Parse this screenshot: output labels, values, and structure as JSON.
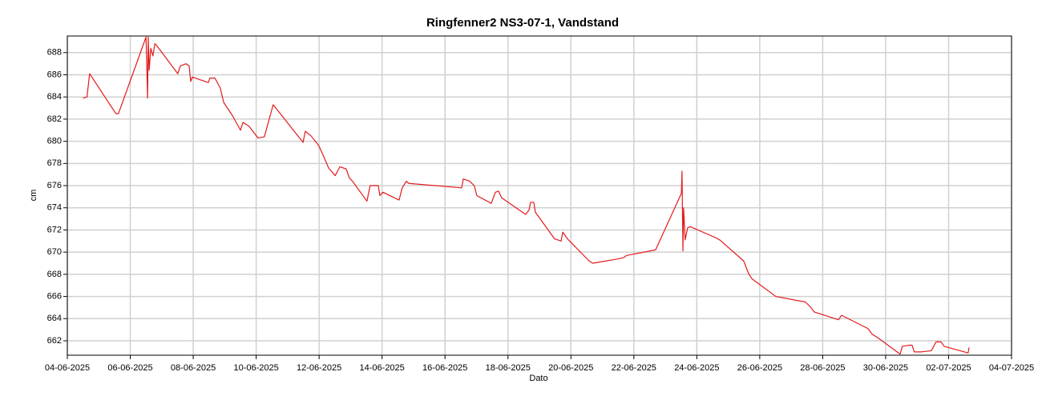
{
  "chart_data": {
    "type": "line",
    "title": "Ringfenner2 NS3-07-1, Vandstand",
    "x_label": "Dato",
    "y_label": "cm",
    "color": "#e31a1c",
    "grid": true,
    "xlim": [
      "2025-06-04T00:00",
      "2025-07-04T00:00"
    ],
    "ylim": [
      660.7,
      689.5
    ],
    "yticks": [
      662,
      664,
      666,
      668,
      670,
      672,
      674,
      676,
      678,
      680,
      682,
      684,
      686,
      688
    ],
    "xticks": [
      {
        "value": "2025-06-04T00:00",
        "label": "04-06-2025"
      },
      {
        "value": "2025-06-06T00:00",
        "label": "06-06-2025"
      },
      {
        "value": "2025-06-08T00:00",
        "label": "08-06-2025"
      },
      {
        "value": "2025-06-10T00:00",
        "label": "10-06-2025"
      },
      {
        "value": "2025-06-12T00:00",
        "label": "12-06-2025"
      },
      {
        "value": "2025-06-14T00:00",
        "label": "14-06-2025"
      },
      {
        "value": "2025-06-16T00:00",
        "label": "16-06-2025"
      },
      {
        "value": "2025-06-18T00:00",
        "label": "18-06-2025"
      },
      {
        "value": "2025-06-20T00:00",
        "label": "20-06-2025"
      },
      {
        "value": "2025-06-22T00:00",
        "label": "22-06-2025"
      },
      {
        "value": "2025-06-24T00:00",
        "label": "24-06-2025"
      },
      {
        "value": "2025-06-26T00:00",
        "label": "26-06-2025"
      },
      {
        "value": "2025-06-28T00:00",
        "label": "28-06-2025"
      },
      {
        "value": "2025-06-30T00:00",
        "label": "30-06-2025"
      },
      {
        "value": "2025-07-02T00:00",
        "label": "02-07-2025"
      },
      {
        "value": "2025-07-04T00:00",
        "label": "04-07-2025"
      }
    ],
    "x": [
      "2025-06-04T12:00",
      "2025-06-04T15:00",
      "2025-06-04T17:00",
      "2025-06-05T13:00",
      "2025-06-05T15:00",
      "2025-06-06T12:00",
      "2025-06-06T13:12",
      "2025-06-06T13:41",
      "2025-06-06T14:24",
      "2025-06-06T15:36",
      "2025-06-06T17:17",
      "2025-06-06T18:43",
      "2025-06-06T20:24",
      "2025-06-07T12:14",
      "2025-06-07T14:10",
      "2025-06-07T18:29",
      "2025-06-07T20:53",
      "2025-06-07T22:05",
      "2025-06-07T23:17",
      "2025-06-08T11:31",
      "2025-06-08T12:43",
      "2025-06-08T16:34",
      "2025-06-08T20:38",
      "2025-06-08T23:17",
      "2025-06-09T06:00",
      "2025-06-09T12:00",
      "2025-06-09T13:55",
      "2025-06-09T18:14",
      "2025-06-10T01:26",
      "2025-06-10T06:14",
      "2025-06-10T12:58",
      "2025-06-11T11:46",
      "2025-06-11T13:26",
      "2025-06-11T17:46",
      "2025-06-11T23:46",
      "2025-06-12T03:36",
      "2025-06-12T07:12",
      "2025-06-12T12:14",
      "2025-06-12T15:50",
      "2025-06-12T20:38",
      "2025-06-12T23:02",
      "2025-06-13T01:26",
      "2025-06-13T12:29",
      "2025-06-13T14:53",
      "2025-06-13T21:07",
      "2025-06-13T22:19",
      "2025-06-14T00:43",
      "2025-06-14T12:58",
      "2025-06-14T15:22",
      "2025-06-14T18:29",
      "2025-06-14T20:24",
      "2025-06-16T12:43",
      "2025-06-16T13:55",
      "2025-06-16T18:43",
      "2025-06-16T22:19",
      "2025-06-17T00:14",
      "2025-06-17T11:17",
      "2025-06-17T14:24",
      "2025-06-17T16:48",
      "2025-06-17T19:12",
      "2025-06-18T13:26",
      "2025-06-18T16:05",
      "2025-06-18T17:17",
      "2025-06-18T19:41",
      "2025-06-18T20:53",
      "2025-06-19T11:31",
      "2025-06-19T16:34",
      "2025-06-19T17:46",
      "2025-06-19T21:22",
      "2025-06-20T13:55",
      "2025-06-20T16:48",
      "2025-06-21T12:29",
      "2025-06-21T16:05",
      "2025-06-21T18:29",
      "2025-06-22T16:34",
      "2025-06-23T12:14",
      "2025-06-23T12:43",
      "2025-06-23T13:26",
      "2025-06-23T13:55",
      "2025-06-23T15:07",
      "2025-06-23T17:02",
      "2025-06-23T18:58",
      "2025-06-24T14:24",
      "2025-06-24T17:31",
      "2025-06-25T11:46",
      "2025-06-25T15:22",
      "2025-06-25T18:00",
      "2025-06-26T12:14",
      "2025-06-27T10:48",
      "2025-06-27T15:07",
      "2025-06-27T17:31",
      "2025-06-28T12:00",
      "2025-06-28T14:24",
      "2025-06-29T10:34",
      "2025-06-29T13:41",
      "2025-06-29T17:46",
      "2025-06-30T11:02",
      "2025-06-30T12:43",
      "2025-06-30T17:46",
      "2025-06-30T20:10",
      "2025-06-30T21:50",
      "2025-07-01T03:22",
      "2025-07-01T10:48",
      "2025-07-01T14:24",
      "2025-07-01T18:14",
      "2025-07-01T20:38",
      "2025-07-02T14:53",
      "2025-07-02T15:36"
    ],
    "values": [
      683.9,
      684.0,
      686.1,
      682.5,
      682.5,
      689.4,
      683.9,
      689.4,
      686.4,
      688.4,
      687.7,
      688.8,
      688.6,
      686.1,
      686.8,
      687.0,
      686.8,
      685.4,
      685.8,
      685.3,
      685.7,
      685.7,
      684.8,
      683.5,
      682.3,
      681.0,
      681.7,
      681.4,
      680.3,
      680.4,
      683.3,
      679.9,
      680.9,
      680.5,
      679.6,
      678.6,
      677.6,
      676.9,
      677.7,
      677.5,
      676.7,
      676.4,
      674.6,
      676.0,
      676.0,
      675.1,
      675.4,
      674.7,
      675.8,
      676.4,
      676.2,
      675.8,
      676.6,
      676.4,
      676.0,
      675.1,
      674.4,
      675.4,
      675.5,
      674.9,
      673.4,
      673.8,
      674.5,
      674.5,
      673.6,
      671.2,
      671.0,
      671.8,
      671.2,
      669.2,
      669.0,
      669.4,
      669.5,
      669.7,
      670.2,
      675.3,
      677.3,
      670.1,
      674.0,
      671.1,
      672.2,
      672.3,
      671.3,
      671.1,
      669.2,
      668.1,
      667.6,
      666.0,
      665.5,
      665.0,
      664.6,
      663.9,
      664.3,
      663.1,
      662.6,
      662.3,
      660.8,
      661.5,
      661.6,
      661.6,
      661.0,
      661.0,
      661.1,
      661.9,
      661.9,
      661.5,
      660.9,
      661.4
    ]
  }
}
